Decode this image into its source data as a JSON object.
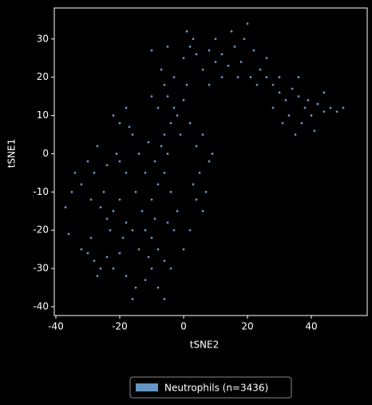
{
  "chart_data": {
    "type": "scatter",
    "xlabel": "tSNE2",
    "ylabel": "tSNE1",
    "xlim": [
      -40.5,
      57.5
    ],
    "ylim": [
      -42.3,
      38.1
    ],
    "xticks": [
      -40,
      -20,
      0,
      20,
      40
    ],
    "yticks": [
      -40,
      -30,
      -20,
      -10,
      0,
      10,
      20,
      30
    ],
    "grid": false,
    "legend": "bottom",
    "x": [
      -28,
      -30,
      -26,
      -24,
      -29,
      -32,
      -27,
      -22,
      -20,
      -18,
      -15,
      -12,
      -10,
      -8,
      -6,
      -16,
      -36,
      -37,
      -34,
      -35,
      -22,
      -24,
      -20,
      -26,
      -18,
      -25,
      -28,
      -30,
      -27,
      -29,
      -32,
      -23,
      -19,
      -16,
      -14,
      -12,
      -10,
      -8,
      -6,
      -4,
      -15,
      -12,
      -10,
      -8,
      -6,
      -14,
      -11,
      -9,
      -7,
      -5,
      -4,
      -2,
      -3,
      -5,
      -18,
      -20,
      -16,
      -20,
      -22,
      -18,
      -24,
      -21,
      -13,
      -9,
      -11,
      -6,
      -4,
      -3,
      -5,
      -2,
      0,
      1,
      -1,
      2,
      -8,
      -6,
      -10,
      -7,
      -3,
      4,
      6,
      8,
      5,
      7,
      9,
      3,
      6,
      2,
      0,
      4,
      0,
      2,
      4,
      6,
      8,
      10,
      12,
      14,
      16,
      18,
      15,
      19,
      20,
      22,
      24,
      26,
      28,
      30,
      32,
      34,
      36,
      38,
      40,
      42,
      44,
      46,
      48,
      50,
      33,
      35,
      37,
      39,
      30,
      28,
      26,
      23,
      21,
      17,
      12,
      8,
      -10,
      -5,
      1,
      3,
      10,
      -17,
      41,
      44,
      36,
      31
    ],
    "series": [
      {
        "name": "Neutrophils (n=3436)",
        "color": "#6495c3",
        "values": [
          -28,
          -26,
          -30,
          -27,
          -22,
          -25,
          -32,
          -30,
          -26,
          -32,
          -35,
          -33,
          -30,
          -35,
          -38,
          -38,
          -21,
          -14,
          -5,
          -10,
          -15,
          -17,
          -12,
          -14,
          -18,
          -10,
          -5,
          -2,
          2,
          -12,
          -8,
          -20,
          -22,
          -20,
          -25,
          -20,
          -22,
          -25,
          -28,
          -30,
          -10,
          -5,
          -12,
          -8,
          -5,
          0,
          3,
          -2,
          2,
          0,
          -10,
          -15,
          -20,
          -18,
          -5,
          -2,
          5,
          8,
          10,
          12,
          -3,
          0,
          -15,
          -17,
          -27,
          5,
          8,
          12,
          15,
          10,
          14,
          18,
          5,
          8,
          12,
          18,
          15,
          22,
          20,
          2,
          5,
          -2,
          -5,
          -10,
          0,
          -8,
          -15,
          -20,
          -25,
          -12,
          25,
          28,
          26,
          22,
          27,
          24,
          26,
          23,
          28,
          24,
          32,
          30,
          34,
          27,
          22,
          20,
          18,
          16,
          14,
          17,
          15,
          12,
          10,
          13,
          11,
          12,
          11,
          12,
          10,
          5,
          8,
          14,
          20,
          12,
          25,
          18,
          20,
          20,
          20,
          18,
          27,
          28,
          32,
          30,
          30,
          7,
          6,
          16,
          20,
          8
        ]
      }
    ]
  }
}
